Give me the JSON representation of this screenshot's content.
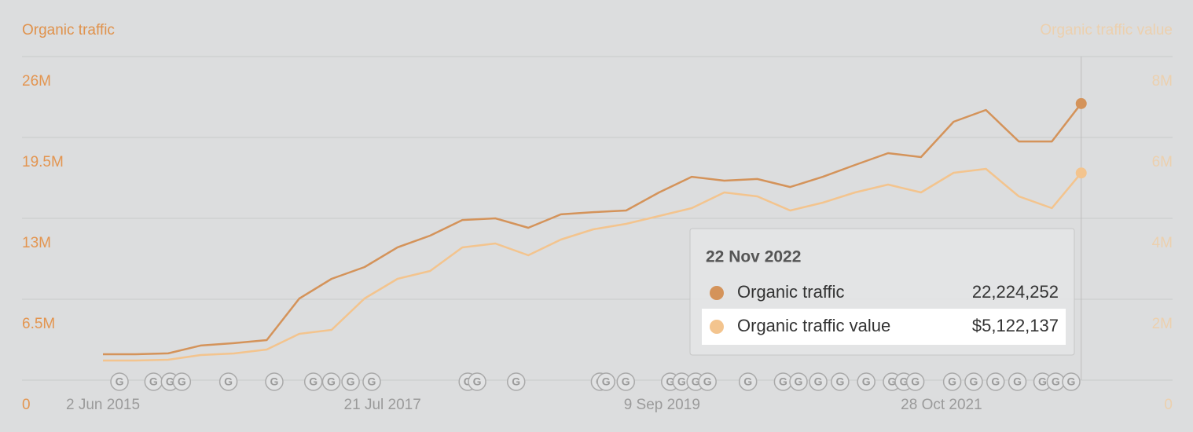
{
  "chart_data": {
    "type": "line",
    "ylabel": "Organic traffic",
    "y2label": "Organic traffic value",
    "x": [
      "2015-06-02",
      "2015-09-01",
      "2015-12-01",
      "2016-03-01",
      "2016-06-01",
      "2016-09-01",
      "2016-12-01",
      "2017-03-01",
      "2017-06-01",
      "2017-09-01",
      "2017-12-01",
      "2018-03-01",
      "2018-06-01",
      "2018-09-01",
      "2018-12-01",
      "2019-03-01",
      "2019-06-01",
      "2019-09-01",
      "2019-12-01",
      "2020-03-01",
      "2020-06-01",
      "2020-09-01",
      "2020-12-01",
      "2021-03-01",
      "2021-06-01",
      "2021-09-01",
      "2021-12-01",
      "2022-03-01",
      "2022-06-01",
      "2022-09-01",
      "2022-11-22"
    ],
    "series": [
      {
        "name": "Organic traffic",
        "color": "#d4935a",
        "axis": "y",
        "values": [
          2080000,
          2080000,
          2150000,
          2780000,
          2970000,
          3220000,
          6560000,
          8140000,
          9090000,
          10670000,
          11610000,
          12870000,
          13000000,
          12240000,
          13320000,
          13500000,
          13630000,
          15080000,
          16340000,
          16030000,
          16160000,
          15520000,
          16340000,
          17290000,
          18240000,
          17920000,
          20760000,
          21710000,
          19180000,
          19180000,
          22224252
        ],
        "value_labels": [
          null,
          null,
          null,
          null,
          null,
          null,
          null,
          null,
          null,
          null,
          null,
          null,
          null,
          null,
          null,
          null,
          null,
          null,
          null,
          null,
          null,
          null,
          null,
          null,
          null,
          null,
          null,
          null,
          null,
          null,
          "22,224,252"
        ]
      },
      {
        "name": "Organic traffic value",
        "color": "#f3c48e",
        "axis": "y2",
        "values": [
          485000,
          485000,
          505000,
          621000,
          660000,
          757000,
          1146000,
          1243000,
          2019000,
          2505000,
          2699000,
          3281000,
          3378000,
          3087000,
          3476000,
          3728000,
          3864000,
          4058000,
          4252000,
          4641000,
          4544000,
          4194000,
          4388000,
          4641000,
          4835000,
          4641000,
          5126000,
          5223000,
          4544000,
          4252000,
          5122137
        ],
        "value_labels": [
          null,
          null,
          null,
          null,
          null,
          null,
          null,
          null,
          null,
          null,
          null,
          null,
          null,
          null,
          null,
          null,
          null,
          null,
          null,
          null,
          null,
          null,
          null,
          null,
          null,
          null,
          null,
          null,
          null,
          null,
          "$5,122,137"
        ]
      }
    ],
    "xlim": [
      "2014-10-19",
      "2023-08-04"
    ],
    "xticks": [
      {
        "value": "2015-06-02",
        "label": "2 Jun 2015"
      },
      {
        "value": "2017-07-21",
        "label": "21 Jul 2017"
      },
      {
        "value": "2019-09-09",
        "label": "9 Sep 2019"
      },
      {
        "value": "2021-10-28",
        "label": "28 Oct 2021"
      }
    ],
    "ylim": [
      0,
      26000000
    ],
    "yticks": [
      0,
      {
        "value": 6500000,
        "label": "6.5M"
      },
      {
        "value": 13000000,
        "label": "13M"
      },
      {
        "value": 19500000,
        "label": "19.5M"
      },
      {
        "value": 26000000,
        "label": "26M"
      }
    ],
    "y2lim": [
      0,
      8000000
    ],
    "y2ticks": [
      0,
      {
        "value": 2000000,
        "label": "2M"
      },
      {
        "value": 4000000,
        "label": "4M"
      },
      {
        "value": 6000000,
        "label": "6M"
      },
      {
        "value": 8000000,
        "label": "8M"
      }
    ],
    "grid": true,
    "tooltip_title": "22 Nov 2022",
    "update_marker_label": "G",
    "update_dates": [
      "2015-07-18",
      "2015-10-21",
      "2015-12-06",
      "2016-01-08",
      "2016-05-17",
      "2016-09-22",
      "2017-01-09",
      "2017-02-28",
      "2017-04-23",
      "2017-06-21",
      "2018-03-16",
      "2018-04-11",
      "2018-07-29",
      "2019-03-20",
      "2019-04-06",
      "2019-05-31",
      "2019-10-02",
      "2019-11-03",
      "2019-12-12",
      "2020-01-14",
      "2020-05-06",
      "2020-08-12",
      "2020-09-24",
      "2020-11-18",
      "2021-01-18",
      "2021-04-01",
      "2021-06-12",
      "2021-07-15",
      "2021-08-16",
      "2021-11-27",
      "2022-01-26",
      "2022-03-28",
      "2022-05-28",
      "2022-08-06",
      "2022-09-12",
      "2022-10-25"
    ]
  }
}
